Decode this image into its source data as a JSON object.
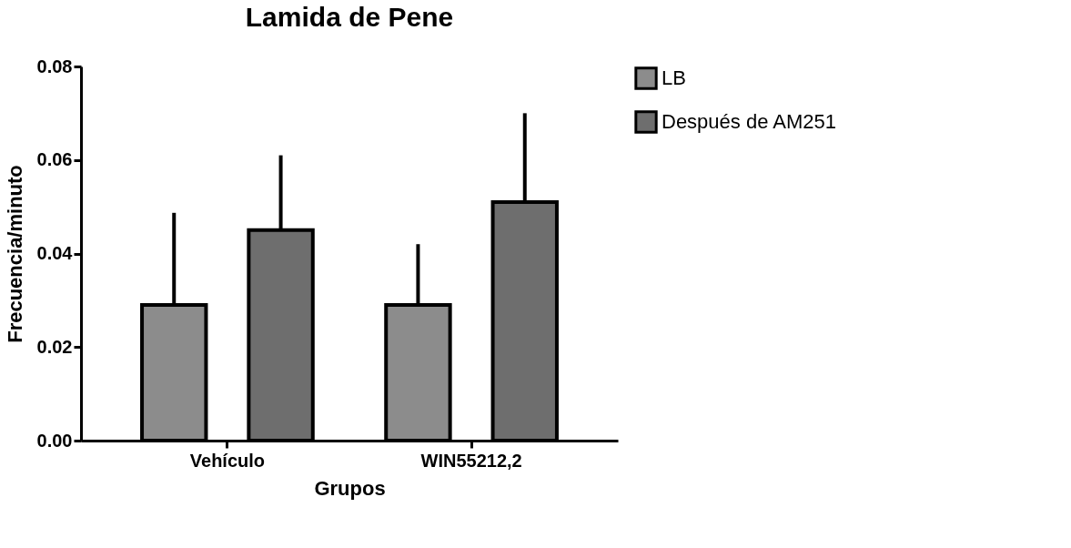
{
  "chart_data": {
    "type": "bar",
    "title": "Lamida de Pene",
    "xlabel": "Grupos",
    "ylabel": "Frecuencia/minuto",
    "categories": [
      "Vehículo",
      "WIN55212,2"
    ],
    "series": [
      {
        "name": "LB",
        "color": "#8c8c8c",
        "values": [
          0.029,
          0.029
        ],
        "errors": [
          [
            0.029,
            0.0487
          ],
          [
            0.029,
            0.042
          ]
        ]
      },
      {
        "name": "Después de AM251",
        "color": "#6e6e6e",
        "values": [
          0.045,
          0.051
        ],
        "errors": [
          [
            0.045,
            0.061
          ],
          [
            0.051,
            0.07
          ]
        ]
      }
    ],
    "ylim": [
      0,
      0.08
    ],
    "yticks": [
      {
        "value": 0,
        "label": "0.00"
      },
      {
        "value": 0.02,
        "label": "0.02"
      },
      {
        "value": 0.04,
        "label": "0.04"
      },
      {
        "value": 0.06,
        "label": "0.06"
      },
      {
        "value": 0.08,
        "label": "0.08"
      }
    ],
    "grid": false,
    "legend": "top right"
  }
}
